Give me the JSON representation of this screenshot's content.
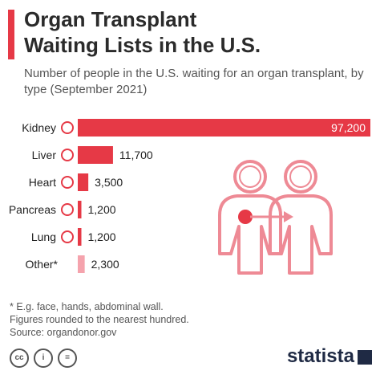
{
  "title_line1": "Organ Transplant",
  "title_line2": "Waiting Lists in the U.S.",
  "subtitle": "Number of people in the U.S. waiting for an organ transplant, by type (September 2021)",
  "notes": [
    "* E.g. face, hands, abdominal wall.",
    "Figures rounded to the nearest hundred.",
    "Source: organdonor.gov"
  ],
  "brand": "statista",
  "colors": {
    "bar": "#e63946",
    "other_bar": "#f5a3ad",
    "accent": "#e63946",
    "illustration": "#ee8a95"
  },
  "chart_data": {
    "type": "bar",
    "orientation": "horizontal",
    "categories": [
      "Kidney",
      "Liver",
      "Heart",
      "Pancreas",
      "Lung",
      "Other*"
    ],
    "values": [
      97200,
      11700,
      3500,
      1200,
      1200,
      2300
    ],
    "value_labels": [
      "97,200",
      "11,700",
      "3,500",
      "1,200",
      "1,200",
      "2,300"
    ],
    "category_icons": [
      "kidney-icon",
      "liver-icon",
      "heart-icon",
      "pancreas-icon",
      "lungs-icon",
      ""
    ],
    "xlim": [
      0,
      97200
    ],
    "grid": false
  }
}
